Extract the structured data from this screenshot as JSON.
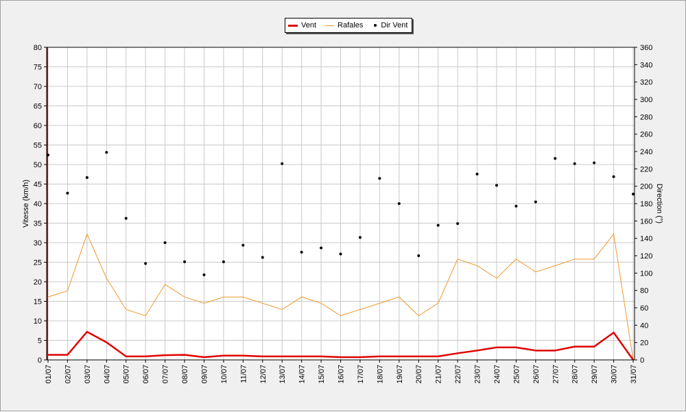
{
  "chart_data": {
    "type": "line",
    "categories": [
      "01/07",
      "02/07",
      "03/07",
      "04/07",
      "05/07",
      "06/07",
      "07/07",
      "08/07",
      "09/07",
      "10/07",
      "11/07",
      "12/07",
      "13/07",
      "14/07",
      "15/07",
      "16/07",
      "17/07",
      "18/07",
      "19/07",
      "20/07",
      "21/07",
      "22/07",
      "23/07",
      "24/07",
      "25/07",
      "26/07",
      "27/07",
      "28/07",
      "29/07",
      "30/07",
      "31/07"
    ],
    "ylabel": "Vitesse (km/h)",
    "y2label": "Direction (°)",
    "ylim": [
      0,
      80
    ],
    "y2lim": [
      0,
      360
    ],
    "yticks": [
      "0",
      "5",
      "10",
      "15",
      "20",
      "25",
      "30",
      "35",
      "40",
      "45",
      "50",
      "55",
      "60",
      "65",
      "70",
      "75",
      "80"
    ],
    "y2ticks": [
      "0",
      "20",
      "40",
      "60",
      "80",
      "100",
      "120",
      "140",
      "160",
      "180",
      "200",
      "220",
      "240",
      "260",
      "280",
      "300",
      "320",
      "340",
      "360"
    ],
    "grid": true,
    "legend_position": "top-center",
    "series": [
      {
        "name": "Vent",
        "axis": "left",
        "color": "#e00000",
        "style": "thick-line",
        "values": [
          1.3,
          1.3,
          7.2,
          4.5,
          0.9,
          0.9,
          1.2,
          1.3,
          0.7,
          1.1,
          1.1,
          0.9,
          0.9,
          0.9,
          0.9,
          0.7,
          0.7,
          0.9,
          0.9,
          0.9,
          0.9,
          1.7,
          2.4,
          3.2,
          3.2,
          2.4,
          2.4,
          3.4,
          3.4,
          7.0,
          0.0
        ]
      },
      {
        "name": "Rafales",
        "axis": "left",
        "color": "#f0982a",
        "style": "thin-line",
        "values": [
          16.1,
          17.7,
          32.2,
          20.9,
          12.9,
          11.3,
          19.3,
          16.1,
          14.5,
          16.1,
          16.1,
          14.5,
          12.9,
          16.1,
          14.5,
          11.3,
          12.9,
          14.5,
          16.1,
          11.3,
          14.5,
          25.8,
          24.1,
          20.9,
          25.8,
          22.5,
          24.1,
          25.8,
          25.8,
          32.2,
          0.0
        ]
      },
      {
        "name": "Dir Vent",
        "axis": "right",
        "color": "#000000",
        "style": "dots",
        "values": [
          236,
          192,
          210,
          239,
          163,
          111,
          135,
          113,
          98,
          113,
          132,
          118,
          226,
          124,
          129,
          122,
          141,
          209,
          180,
          120,
          155,
          157,
          214,
          201,
          177,
          182,
          232,
          226,
          227,
          211,
          191
        ]
      }
    ]
  }
}
